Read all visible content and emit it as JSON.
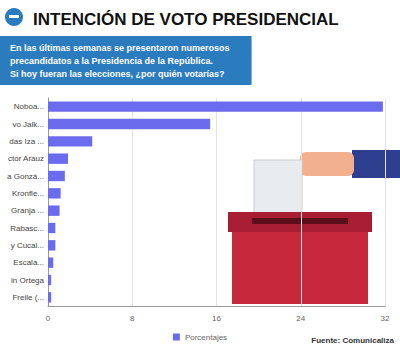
{
  "chart_data": {
    "type": "bar",
    "title": "INTENCIÓN DE VOTO PRESIDENCIAL",
    "subtitle": "En las últimas semanas se presentaron numerosos\nprecandidatos a la Presidencia de la República.\nSi hoy fueran las elecciones, ¿por quién votarías?",
    "source": "Fuente: Comunicaliza",
    "orientation": "horizontal",
    "categories": [
      "Noboa...",
      "vo Jalk...",
      "das Iza ...",
      "ctor Arauz",
      "a Gonzá...",
      "Kronfle...",
      "Granja ...",
      "Rabasc...",
      "y Cucal...",
      "Escala...",
      "in Ortega",
      "Freile (..."
    ],
    "series": [
      {
        "name": "Porcentajes",
        "color": "#6b6bee",
        "values": [
          31.8,
          15.4,
          4.2,
          1.9,
          1.6,
          1.2,
          1.1,
          0.7,
          0.7,
          0.5,
          0.3,
          0.3
        ]
      }
    ],
    "xlim": [
      0,
      32
    ],
    "xticks": [
      0,
      8,
      16,
      24,
      32
    ],
    "grid": true,
    "legend": "bottom"
  }
}
